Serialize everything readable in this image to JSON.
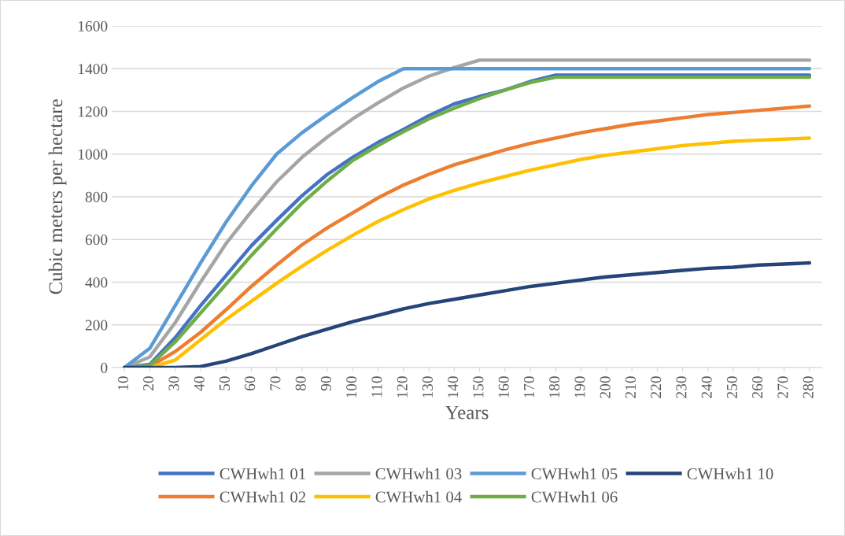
{
  "chart_data": {
    "type": "line",
    "xlabel": "Years",
    "ylabel": "Cubic meters per hectare",
    "categories": [
      "10",
      "20",
      "30",
      "40",
      "50",
      "60",
      "70",
      "80",
      "90",
      "100",
      "110",
      "120",
      "130",
      "140",
      "150",
      "160",
      "170",
      "180",
      "190",
      "200",
      "210",
      "220",
      "230",
      "240",
      "250",
      "260",
      "270",
      "280"
    ],
    "ylim": [
      0,
      1600
    ],
    "yticks": [
      0,
      200,
      400,
      600,
      800,
      1000,
      1200,
      1400,
      1600
    ],
    "grid": "y",
    "legend": "bottom",
    "marker": "none",
    "line_style": "solid",
    "series": [
      {
        "name": "CWHwh1 01",
        "color": "#4472c4",
        "values": [
          0,
          15,
          140,
          290,
          430,
          570,
          690,
          805,
          905,
          985,
          1055,
          1115,
          1180,
          1235,
          1270,
          1300,
          1340,
          1370,
          1370,
          1370,
          1370,
          1370,
          1370,
          1370,
          1370,
          1370,
          1370,
          1370
        ]
      },
      {
        "name": "CWHwh1 02",
        "color": "#ed7d31",
        "values": [
          0,
          5,
          75,
          165,
          270,
          380,
          480,
          575,
          655,
          725,
          795,
          855,
          905,
          950,
          985,
          1020,
          1050,
          1075,
          1100,
          1120,
          1140,
          1155,
          1170,
          1185,
          1195,
          1205,
          1215,
          1225
        ]
      },
      {
        "name": "CWHwh1 03",
        "color": "#a5a5a5",
        "values": [
          0,
          50,
          210,
          400,
          580,
          730,
          870,
          985,
          1080,
          1165,
          1240,
          1310,
          1365,
          1405,
          1440,
          1440,
          1440,
          1440,
          1440,
          1440,
          1440,
          1440,
          1440,
          1440,
          1440,
          1440,
          1440,
          1440
        ]
      },
      {
        "name": "CWHwh1 04",
        "color": "#ffc000",
        "values": [
          0,
          0,
          35,
          130,
          225,
          310,
          395,
          475,
          550,
          620,
          685,
          740,
          790,
          830,
          865,
          895,
          925,
          950,
          975,
          995,
          1010,
          1025,
          1040,
          1050,
          1060,
          1065,
          1070,
          1075
        ]
      },
      {
        "name": "CWHwh1 05",
        "color": "#5b9bd5",
        "values": [
          0,
          90,
          290,
          490,
          680,
          850,
          1000,
          1100,
          1185,
          1265,
          1340,
          1400,
          1400,
          1400,
          1400,
          1400,
          1400,
          1400,
          1400,
          1400,
          1400,
          1400,
          1400,
          1400,
          1400,
          1400,
          1400,
          1400
        ]
      },
      {
        "name": "CWHwh1 06",
        "color": "#70ad47",
        "values": [
          0,
          10,
          120,
          255,
          390,
          525,
          650,
          770,
          875,
          970,
          1040,
          1105,
          1165,
          1215,
          1260,
          1300,
          1335,
          1360,
          1360,
          1360,
          1360,
          1360,
          1360,
          1360,
          1360,
          1360,
          1360,
          1360
        ]
      },
      {
        "name": "CWHwh1 10",
        "color": "#264478",
        "values": [
          0,
          0,
          0,
          5,
          30,
          65,
          105,
          145,
          180,
          215,
          245,
          275,
          300,
          320,
          340,
          360,
          380,
          395,
          410,
          425,
          435,
          445,
          455,
          465,
          470,
          480,
          485,
          490
        ]
      }
    ]
  }
}
